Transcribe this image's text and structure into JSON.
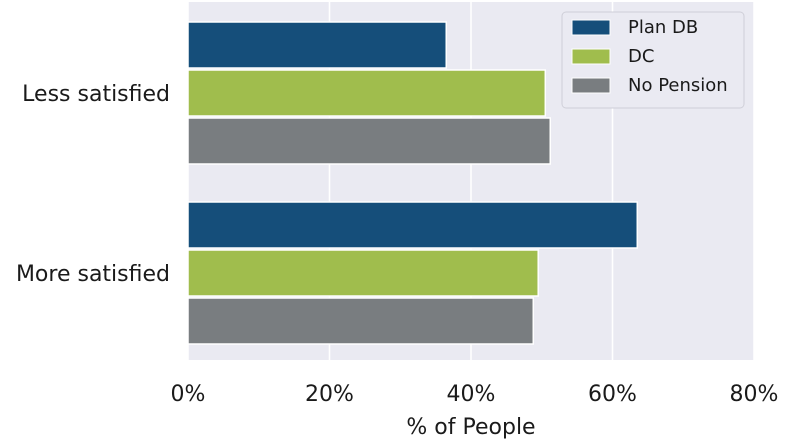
{
  "chart_data": {
    "type": "bar",
    "orientation": "horizontal",
    "categories": [
      "Less satisfied",
      "More satisfied"
    ],
    "series": [
      {
        "name": "Plan DB",
        "values": [
          36.5,
          63.5
        ],
        "color": "#154e7a"
      },
      {
        "name": "DC",
        "values": [
          50.5,
          49.5
        ],
        "color": "#a0bd4d"
      },
      {
        "name": "No Pension",
        "values": [
          51.2,
          48.8
        ],
        "color": "#797d80"
      }
    ],
    "xlabel": "% of People",
    "ylabel": "",
    "xlim": [
      0,
      80
    ],
    "xticks": [
      0,
      20,
      40,
      60,
      80
    ],
    "xtick_labels": [
      "0%",
      "20%",
      "40%",
      "60%",
      "80%"
    ],
    "grid": true,
    "legend_position": "top-right",
    "plot_background": "#eaeaf2",
    "grid_color": "#ffffff"
  }
}
